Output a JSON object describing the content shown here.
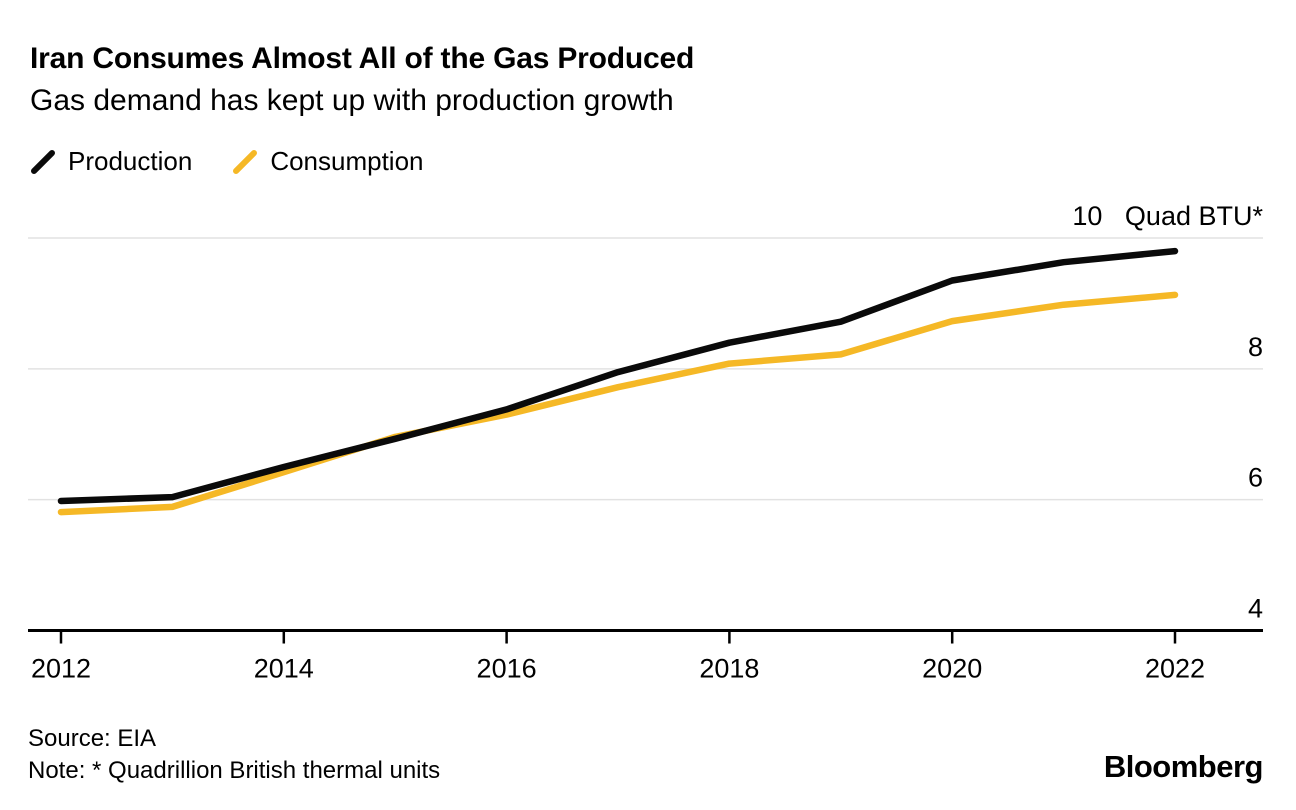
{
  "header": {
    "title": "Iran Consumes Almost All of the Gas Produced",
    "subtitle": "Gas demand has kept up with production growth"
  },
  "legend": {
    "items": [
      {
        "label": "Production",
        "color": "#0a0a0a"
      },
      {
        "label": "Consumption",
        "color": "#F5B826"
      }
    ]
  },
  "chart_data": {
    "type": "line",
    "x": [
      2012,
      2013,
      2014,
      2015,
      2016,
      2017,
      2018,
      2019,
      2020,
      2021,
      2022
    ],
    "series": [
      {
        "name": "Production",
        "color": "#0a0a0a",
        "values": [
          5.98,
          6.04,
          6.5,
          6.93,
          7.38,
          7.95,
          8.4,
          8.72,
          9.35,
          9.63,
          9.8
        ]
      },
      {
        "name": "Consumption",
        "color": "#F5B826",
        "values": [
          5.81,
          5.89,
          6.42,
          6.96,
          7.3,
          7.72,
          8.08,
          8.22,
          8.73,
          8.98,
          9.13
        ]
      }
    ],
    "unit_label": "Quad BTU*",
    "y_ticks": [
      4,
      6,
      8,
      10
    ],
    "x_tick_labels": [
      "2012",
      "2014",
      "2016",
      "2018",
      "2020",
      "2022"
    ],
    "ylim": [
      4,
      10
    ],
    "xlim": [
      2012,
      2022
    ],
    "grid": "horizontal-light-gray",
    "y_axis_side": "right",
    "legend_position": "top-left"
  },
  "footer": {
    "source": "Source: EIA",
    "note": "Note: * Quadrillion British thermal units",
    "brand": "Bloomberg"
  }
}
